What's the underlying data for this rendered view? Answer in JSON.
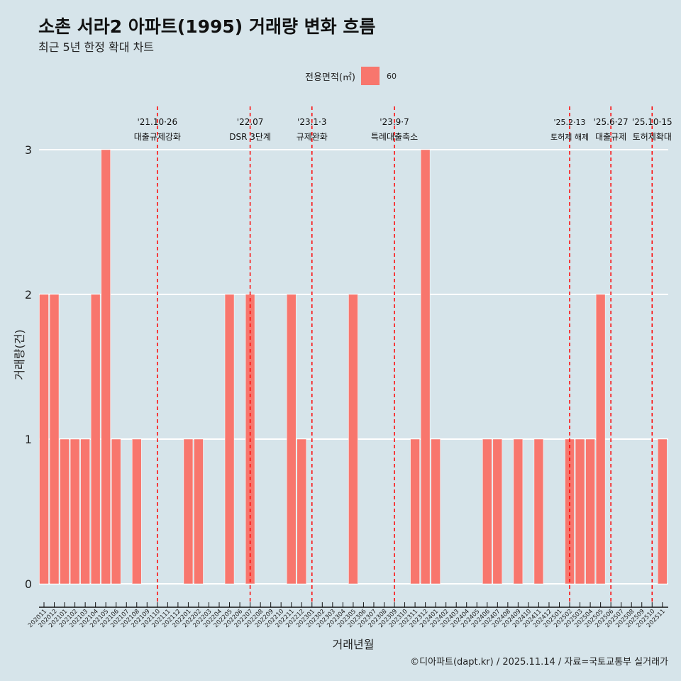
{
  "title": "소촌 서라2 아파트(1995) 거래량 변화 흐름",
  "subtitle": "최근 5년 한정 확대 차트",
  "caption": "©디아파트(dapt.kr) / 2025.11.14 / 자료=국토교통부 실거래가",
  "legend": {
    "title": "전용면적(㎡)",
    "entries": [
      "60"
    ]
  },
  "colors": {
    "bar": "#f8766d",
    "event_line": "#ff0000",
    "background": "#d6e4ea",
    "grid": "#ffffff"
  },
  "chart_data": {
    "type": "bar",
    "xlabel": "거래년월",
    "ylabel": "거래량(건)",
    "ylim": [
      0,
      3
    ],
    "yticks": [
      0,
      1,
      2,
      3
    ],
    "categories": [
      "202011",
      "202012",
      "202101",
      "202102",
      "202103",
      "202104",
      "202105",
      "202106",
      "202107",
      "202108",
      "202109",
      "202110",
      "202111",
      "202112",
      "202201",
      "202202",
      "202203",
      "202204",
      "202205",
      "202206",
      "202207",
      "202208",
      "202209",
      "202210",
      "202211",
      "202212",
      "202301",
      "202302",
      "202303",
      "202304",
      "202305",
      "202306",
      "202307",
      "202308",
      "202309",
      "202310",
      "202311",
      "202312",
      "202401",
      "202402",
      "202403",
      "202404",
      "202405",
      "202406",
      "202407",
      "202408",
      "202409",
      "202410",
      "202411",
      "202412",
      "202501",
      "202502",
      "202503",
      "202504",
      "202505",
      "202506",
      "202507",
      "202508",
      "202509",
      "202510",
      "202511"
    ],
    "series": [
      {
        "name": "60",
        "values": [
          2,
          2,
          1,
          1,
          1,
          2,
          3,
          1,
          0,
          1,
          0,
          0,
          0,
          0,
          1,
          1,
          0,
          0,
          2,
          0,
          2,
          0,
          0,
          0,
          2,
          1,
          0,
          0,
          0,
          0,
          2,
          0,
          0,
          0,
          0,
          0,
          1,
          3,
          1,
          0,
          0,
          0,
          0,
          1,
          1,
          0,
          1,
          0,
          1,
          0,
          0,
          1,
          1,
          1,
          2,
          0,
          0,
          0,
          0,
          0,
          1
        ]
      }
    ],
    "events": [
      {
        "x": "202110",
        "date": "'21.10·26",
        "label": "대출규제강화"
      },
      {
        "x": "202207",
        "date": "'22.07",
        "label": "DSR 3단계"
      },
      {
        "x": "202301",
        "date": "'23.1·3",
        "label": "규제완화"
      },
      {
        "x": "202309",
        "date": "'23.9·7",
        "label": "특례대출축소"
      },
      {
        "x": "202502",
        "date": "'25.2·13",
        "label": "토허제 해제"
      },
      {
        "x": "202506",
        "date": "'25.6·27",
        "label": "대출규제"
      },
      {
        "x": "202510",
        "date": "'25.10·15",
        "label": "토허제확대"
      }
    ]
  }
}
